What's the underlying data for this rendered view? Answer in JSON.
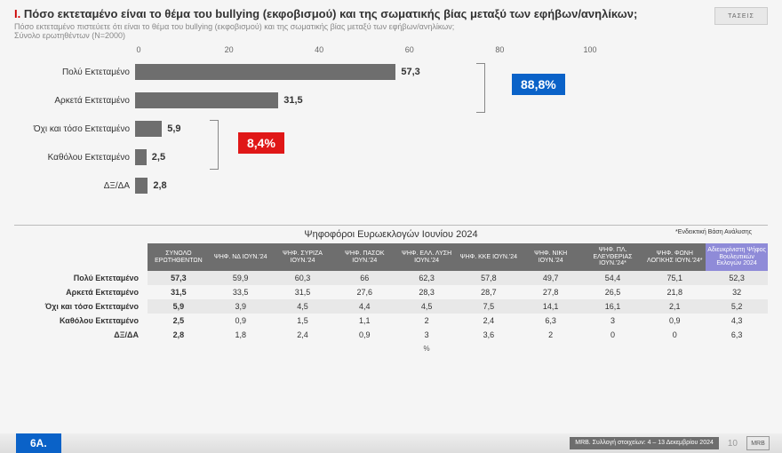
{
  "header": {
    "prefix": "I.",
    "title": "Πόσο εκτεταμένο είναι το θέμα του bullying (εκφοβισμού) και της σωματικής βίας μεταξύ των εφήβων/ανηλίκων;",
    "subtitle": "Πόσο εκτεταμένο πιστεύετε ότι είναι το θέμα του bullying (εκφοβισμού) και της σωματικής βίας μεταξύ των εφήβων/ανηλίκων;",
    "sample": "Σύνολο ερωτηθέντων (Ν=2000)",
    "logo": "ΤΑΣΕΙΣ"
  },
  "chart": {
    "type": "bar",
    "xmax": 100,
    "ticks": [
      0,
      20,
      40,
      60,
      80,
      100
    ],
    "bar_color": "#6e6e6e",
    "bars": [
      {
        "label": "Πολύ Εκτεταμένο",
        "value": 57.3,
        "text": "57,3"
      },
      {
        "label": "Αρκετά Εκτεταμένο",
        "value": 31.5,
        "text": "31,5"
      },
      {
        "label": "Όχι και τόσο Εκτεταμένο",
        "value": 5.9,
        "text": "5,9"
      },
      {
        "label": "Καθόλου Εκτεταμένο",
        "value": 2.5,
        "text": "2,5"
      },
      {
        "label": "ΔΞ/ΔΑ",
        "value": 2.8,
        "text": "2,8"
      }
    ],
    "callouts": {
      "blue": {
        "text": "88,8%",
        "color": "#0a62c8"
      },
      "red": {
        "text": "8,4%",
        "color": "#e01717"
      }
    }
  },
  "table": {
    "title": "Ψηφοφόροι Ευρωεκλογών Ιουνίου 2024",
    "note": "*Ενδεικτική Βάση Ανάλυσης",
    "headers": [
      "",
      "ΣΥΝΟΛΟ ΕΡΩΤΗΘΕΝΤΩΝ",
      "ΨΗΦ. ΝΔ ΙΟΥΝ.'24",
      "ΨΗΦ. ΣΥΡΙΖΑ ΙΟΥΝ.'24",
      "ΨΗΦ. ΠΑΣΟΚ ΙΟΥΝ.'24",
      "ΨΗΦ. ΕΛΛ. ΛΥΣΗ ΙΟΥΝ.'24",
      "ΨΗΦ. ΚΚΕ ΙΟΥΝ.'24",
      "ΨΗΦ. ΝΙΚΗ ΙΟΥΝ.'24",
      "ΨΗΦ. ΠΛ. ΕΛΕΥΘΕΡΙΑΣ ΙΟΥΝ.'24*",
      "ΨΗΦ. ΦΩΝΗ ΛΟΓΙΚΗΣ ΙΟΥΝ.'24*",
      "Αδιευκρίνιστη Ψήφος Βουλευτικών Εκλογών 2024"
    ],
    "alt_col": 10,
    "rows": [
      {
        "label": "Πολύ Εκτεταμένο",
        "cells": [
          "57,3",
          "59,9",
          "60,3",
          "66",
          "62,3",
          "57,8",
          "49,7",
          "54,4",
          "75,1",
          "52,3"
        ],
        "shade": true
      },
      {
        "label": "Αρκετά Εκτεταμένο",
        "cells": [
          "31,5",
          "33,5",
          "31,5",
          "27,6",
          "28,3",
          "28,7",
          "27,8",
          "26,5",
          "21,8",
          "32"
        ],
        "shade": false
      },
      {
        "label": "Όχι και τόσο Εκτεταμένο",
        "cells": [
          "5,9",
          "3,9",
          "4,5",
          "4,4",
          "4,5",
          "7,5",
          "14,1",
          "16,1",
          "2,1",
          "5,2"
        ],
        "shade": true
      },
      {
        "label": "Καθόλου Εκτεταμένο",
        "cells": [
          "2,5",
          "0,9",
          "1,5",
          "1,1",
          "2",
          "2,4",
          "6,3",
          "3",
          "0,9",
          "4,3"
        ],
        "shade": false
      },
      {
        "label": "ΔΞ/ΔΑ",
        "cells": [
          "2,8",
          "1,8",
          "2,4",
          "0,9",
          "3",
          "3,6",
          "2",
          "0",
          "0",
          "6,3"
        ],
        "shade": false
      }
    ],
    "pct_label": "%"
  },
  "footer": {
    "tag": "6Α.",
    "meta": "MRB. Συλλογή στοιχείων: 4 – 13 Δεκεμβρίου 2024",
    "page": "10",
    "brand": "MRB"
  }
}
